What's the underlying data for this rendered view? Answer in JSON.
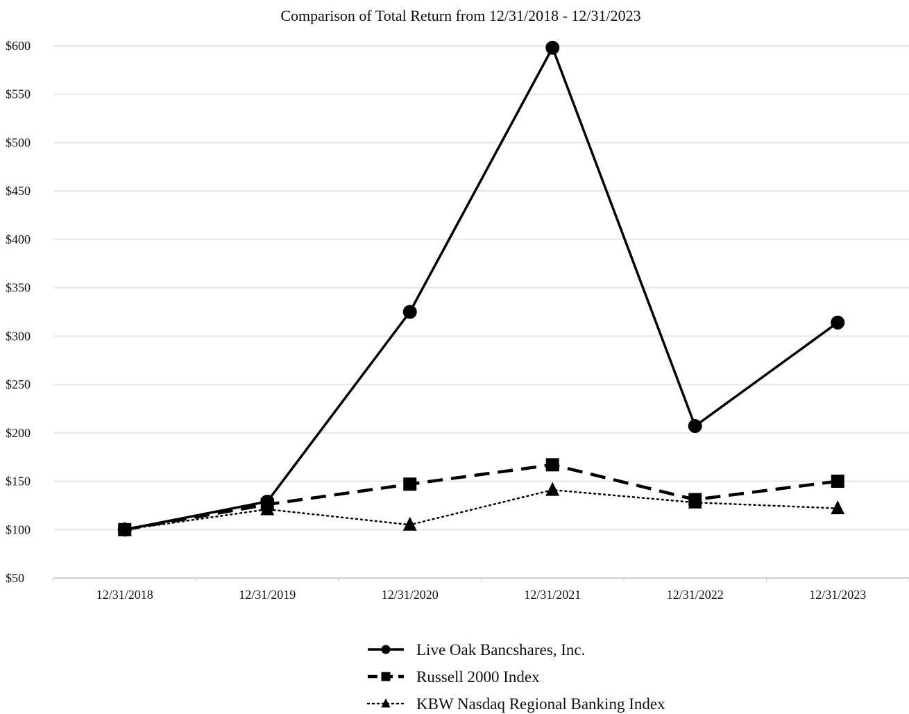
{
  "chart_data": {
    "type": "line",
    "title": "Comparison of Total Return from 12/31/2018 - 12/31/2023",
    "xlabel": "",
    "ylabel": "",
    "categories": [
      "12/31/2018",
      "12/31/2019",
      "12/31/2020",
      "12/31/2021",
      "12/31/2022",
      "12/31/2023"
    ],
    "ylim": [
      50,
      600
    ],
    "yticks": [
      50,
      100,
      150,
      200,
      250,
      300,
      350,
      400,
      450,
      500,
      550,
      600
    ],
    "ytick_labels": [
      "$50",
      "$100",
      "$150",
      "$200",
      "$250",
      "$300",
      "$350",
      "$400",
      "$450",
      "$500",
      "$550",
      "$600"
    ],
    "grid": true,
    "legend_position": "bottom",
    "series": [
      {
        "name": "Live Oak Bancshares, Inc.",
        "values": [
          100,
          129,
          325,
          598,
          207,
          314
        ],
        "marker": "circle",
        "line_style": "solid",
        "color": "#000000"
      },
      {
        "name": "Russell 2000 Index",
        "values": [
          100,
          126,
          147,
          167,
          131,
          150
        ],
        "marker": "square",
        "line_style": "dashed",
        "color": "#000000"
      },
      {
        "name": "KBW Nasdaq Regional Banking Index",
        "values": [
          100,
          121,
          105,
          141,
          128,
          122
        ],
        "marker": "triangle",
        "line_style": "dotted",
        "color": "#000000"
      }
    ]
  }
}
